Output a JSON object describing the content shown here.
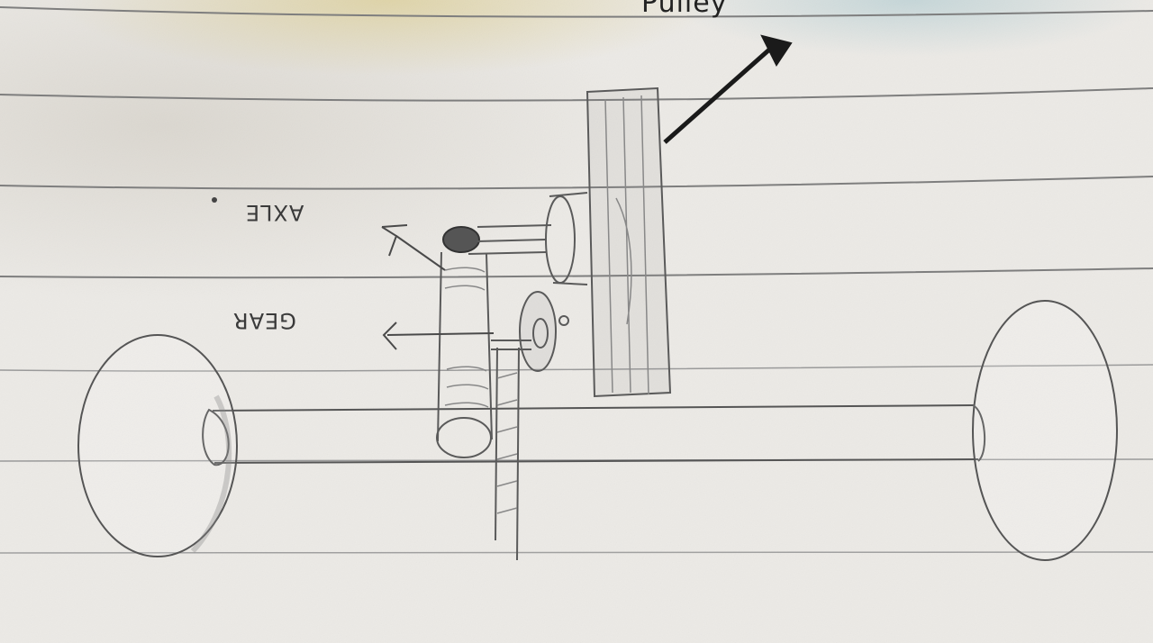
{
  "figure": {
    "labels": {
      "axle": "AXLE",
      "gear": "GEAR",
      "top_label": "Pulley"
    },
    "colors": {
      "paper": "#eceae6",
      "ruled_line": "#8a8a8a",
      "pencil": "#5a5a5a",
      "ink": "#1a1a1a"
    }
  }
}
